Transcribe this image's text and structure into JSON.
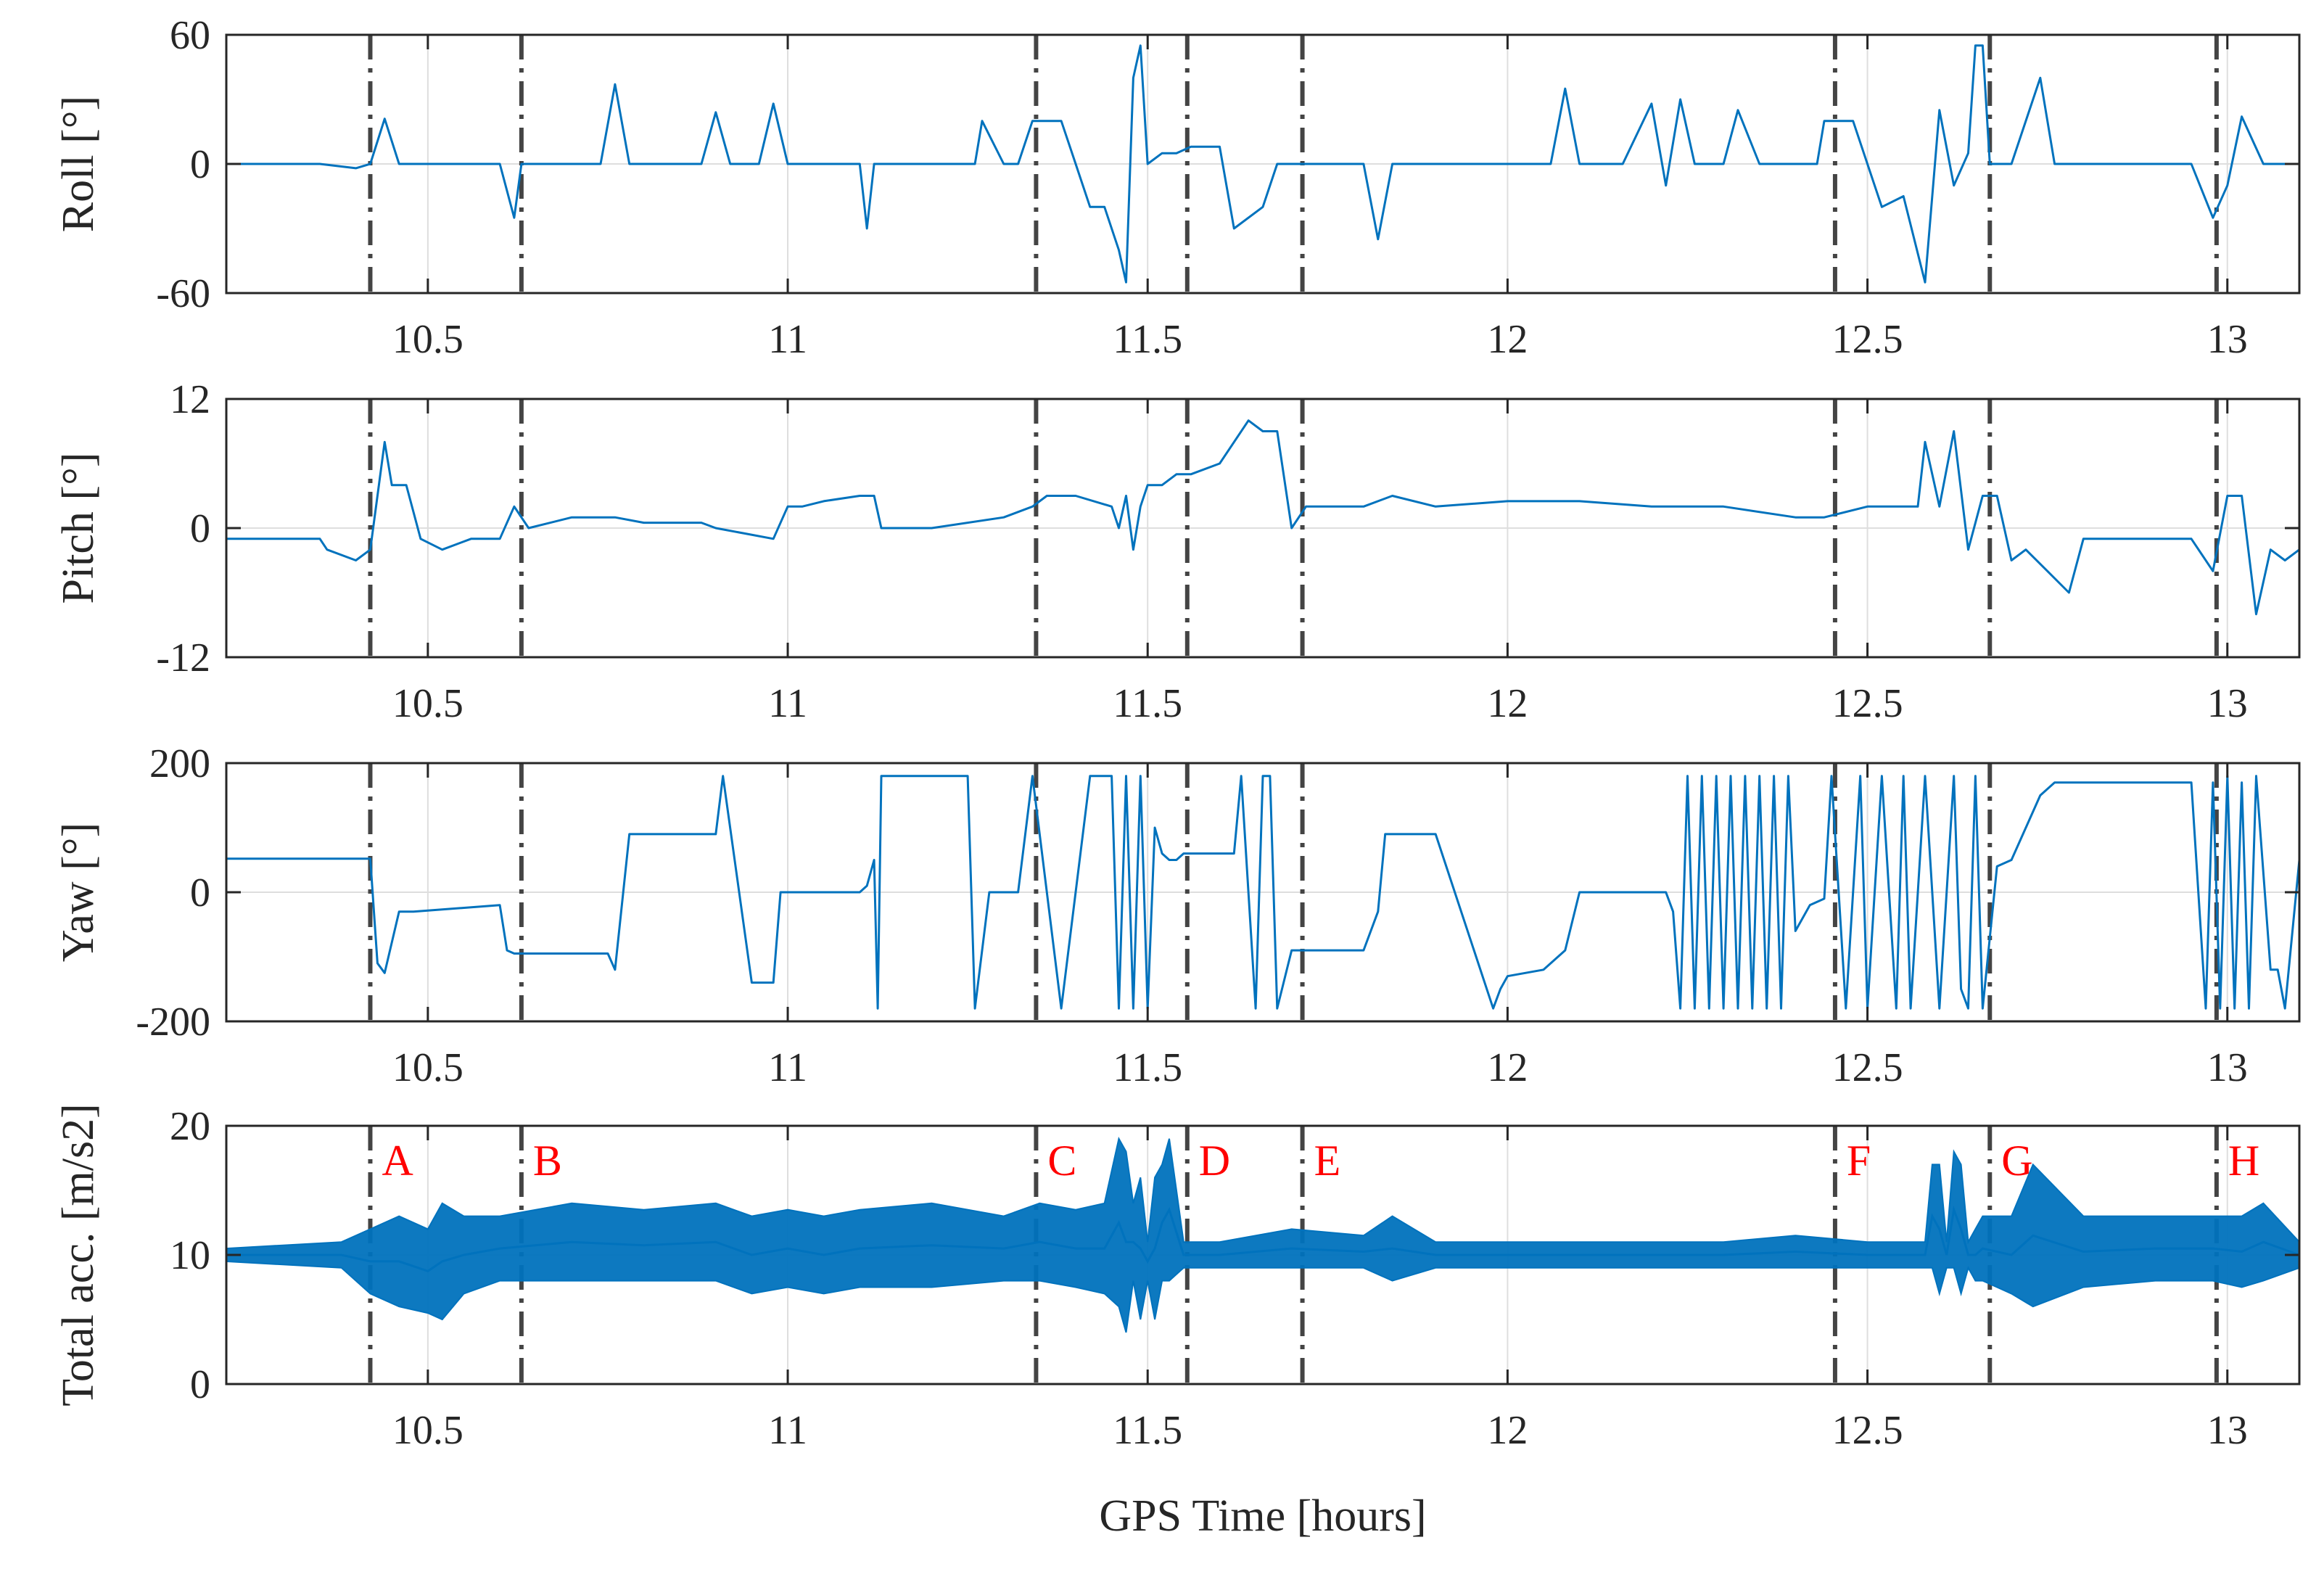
{
  "chart_data": [
    {
      "type": "line",
      "ylabel": "Roll [°]",
      "xlim": [
        10.22,
        13.1
      ],
      "ylim": [
        -60,
        60
      ],
      "yticks": [
        -60,
        0,
        60
      ],
      "ytick_labels": [
        "-60",
        "0",
        "60"
      ],
      "xticks": [
        10.5,
        11,
        11.5,
        12,
        12.5,
        13
      ],
      "xtick_labels": [
        "10.5",
        "11",
        "11.5",
        "12",
        "12.5",
        "13"
      ],
      "grid": true,
      "series": [
        {
          "name": "Roll",
          "color": "#0072bd",
          "x": [
            10.22,
            10.35,
            10.4,
            10.42,
            10.44,
            10.46,
            10.5,
            10.6,
            10.62,
            10.63,
            10.7,
            10.74,
            10.76,
            10.78,
            10.8,
            10.88,
            10.9,
            10.92,
            10.96,
            10.98,
            11.0,
            11.05,
            11.1,
            11.11,
            11.12,
            11.15,
            11.2,
            11.26,
            11.27,
            11.3,
            11.32,
            11.34,
            11.38,
            11.4,
            11.42,
            11.44,
            11.46,
            11.47,
            11.48,
            11.49,
            11.5,
            11.52,
            11.53,
            11.54,
            11.56,
            11.6,
            11.62,
            11.66,
            11.68,
            11.7,
            11.72,
            11.75,
            11.8,
            11.82,
            11.84,
            11.86,
            11.9,
            11.95,
            12.0,
            12.06,
            12.08,
            12.1,
            12.16,
            12.2,
            12.22,
            12.24,
            12.26,
            12.3,
            12.32,
            12.35,
            12.4,
            12.43,
            12.44,
            12.48,
            12.52,
            12.55,
            12.58,
            12.6,
            12.62,
            12.64,
            12.65,
            12.66,
            12.67,
            12.7,
            12.74,
            12.76,
            12.8,
            12.88,
            12.95,
            12.98,
            13.0,
            13.02,
            13.05,
            13.1
          ],
          "values": [
            0,
            0,
            -2,
            0,
            21,
            0,
            0,
            0,
            -25,
            0,
            0,
            0,
            37,
            0,
            0,
            0,
            24,
            0,
            0,
            28,
            0,
            0,
            0,
            -30,
            0,
            0,
            0,
            0,
            20,
            0,
            0,
            20,
            20,
            0,
            -20,
            -20,
            -40,
            -55,
            40,
            55,
            0,
            5,
            5,
            5,
            8,
            8,
            -30,
            -20,
            0,
            0,
            0,
            0,
            0,
            -35,
            0,
            0,
            0,
            0,
            0,
            0,
            35,
            0,
            0,
            28,
            -10,
            30,
            0,
            0,
            25,
            0,
            0,
            0,
            20,
            20,
            -20,
            -15,
            -55,
            25,
            -10,
            5,
            55,
            55,
            0,
            0,
            40,
            0,
            0,
            0,
            0,
            -25,
            -10,
            22,
            0,
            0
          ]
        }
      ]
    },
    {
      "type": "line",
      "ylabel": "Pitch [°]",
      "xlim": [
        10.22,
        13.1
      ],
      "ylim": [
        -12,
        12
      ],
      "yticks": [
        -12,
        0,
        12
      ],
      "ytick_labels": [
        "-12",
        "0",
        "12"
      ],
      "xticks": [
        10.5,
        11,
        11.5,
        12,
        12.5,
        13
      ],
      "xtick_labels": [
        "10.5",
        "11",
        "11.5",
        "12",
        "12.5",
        "13"
      ],
      "grid": true,
      "series": [
        {
          "name": "Pitch",
          "color": "#0072bd",
          "x": [
            10.22,
            10.35,
            10.36,
            10.4,
            10.42,
            10.44,
            10.45,
            10.47,
            10.49,
            10.52,
            10.56,
            10.6,
            10.62,
            10.64,
            10.7,
            10.76,
            10.8,
            10.88,
            10.9,
            10.94,
            10.98,
            11.0,
            11.02,
            11.05,
            11.1,
            11.12,
            11.13,
            11.2,
            11.3,
            11.34,
            11.36,
            11.4,
            11.45,
            11.46,
            11.47,
            11.48,
            11.49,
            11.5,
            11.52,
            11.54,
            11.56,
            11.6,
            11.64,
            11.66,
            11.68,
            11.7,
            11.72,
            11.8,
            11.84,
            11.9,
            12.0,
            12.05,
            12.1,
            12.2,
            12.3,
            12.4,
            12.44,
            12.5,
            12.55,
            12.57,
            12.58,
            12.6,
            12.62,
            12.64,
            12.66,
            12.68,
            12.7,
            12.72,
            12.75,
            12.78,
            12.8,
            12.85,
            12.9,
            12.95,
            12.98,
            13.0,
            13.02,
            13.04,
            13.06,
            13.08,
            13.1
          ],
          "values": [
            -1,
            -1,
            -2,
            -3,
            -2,
            8,
            4,
            4,
            -1,
            -2,
            -1,
            -1,
            2,
            0,
            1,
            1,
            0.5,
            0.5,
            0,
            -0.5,
            -1,
            2,
            2,
            2.5,
            3,
            3,
            0,
            0,
            1,
            2,
            3,
            3,
            2,
            0,
            3,
            -2,
            2,
            4,
            4,
            5,
            5,
            6,
            10,
            9,
            9,
            0,
            2,
            2,
            3,
            2,
            2.5,
            2.5,
            2.5,
            2,
            2,
            1,
            1,
            2,
            2,
            2,
            8,
            2,
            9,
            -2,
            3,
            3,
            -3,
            -2,
            -4,
            -6,
            -1,
            -1,
            -1,
            -1,
            -4,
            3,
            3,
            -8,
            -2,
            -3,
            -2
          ]
        }
      ]
    },
    {
      "type": "line",
      "ylabel": "Yaw [°]",
      "xlim": [
        10.22,
        13.1
      ],
      "ylim": [
        -200,
        200
      ],
      "yticks": [
        -200,
        0,
        200
      ],
      "ytick_labels": [
        "-200",
        "0",
        "200"
      ],
      "xticks": [
        10.5,
        11,
        11.5,
        12,
        12.5,
        13
      ],
      "xtick_labels": [
        "10.5",
        "11",
        "11.5",
        "12",
        "12.5",
        "13"
      ],
      "grid": true,
      "series": [
        {
          "name": "Yaw",
          "color": "#0072bd",
          "x": [
            10.22,
            10.35,
            10.36,
            10.37,
            10.42,
            10.43,
            10.44,
            10.46,
            10.47,
            10.48,
            10.6,
            10.61,
            10.62,
            10.75,
            10.76,
            10.78,
            10.8,
            10.88,
            10.9,
            10.91,
            10.95,
            10.98,
            10.99,
            11.0,
            11.1,
            11.11,
            11.12,
            11.125,
            11.13,
            11.25,
            11.26,
            11.28,
            11.32,
            11.34,
            11.38,
            11.42,
            11.45,
            11.46,
            11.47,
            11.48,
            11.49,
            11.5,
            11.51,
            11.52,
            11.53,
            11.54,
            11.55,
            11.6,
            11.62,
            11.63,
            11.65,
            11.66,
            11.67,
            11.68,
            11.7,
            11.72,
            11.8,
            11.82,
            11.83,
            11.84,
            11.9,
            11.98,
            11.99,
            12.0,
            12.05,
            12.08,
            12.1,
            12.2,
            12.22,
            12.23,
            12.24,
            12.25,
            12.26,
            12.27,
            12.28,
            12.29,
            12.3,
            12.31,
            12.32,
            12.33,
            12.34,
            12.35,
            12.36,
            12.37,
            12.38,
            12.39,
            12.4,
            12.42,
            12.44,
            12.45,
            12.47,
            12.49,
            12.5,
            12.52,
            12.54,
            12.55,
            12.56,
            12.58,
            12.6,
            12.62,
            12.63,
            12.64,
            12.65,
            12.66,
            12.68,
            12.7,
            12.74,
            12.76,
            12.8,
            12.9,
            12.95,
            12.97,
            12.98,
            12.99,
            13.0,
            13.01,
            13.02,
            13.03,
            13.04,
            13.06,
            13.07,
            13.08,
            13.1
          ],
          "values": [
            52,
            52,
            52,
            52,
            52,
            -110,
            -125,
            -30,
            -30,
            -30,
            -20,
            -90,
            -95,
            -95,
            -120,
            90,
            90,
            90,
            90,
            180,
            -140,
            -140,
            0,
            0,
            0,
            10,
            50,
            -180,
            180,
            180,
            -180,
            0,
            0,
            180,
            -180,
            180,
            180,
            -180,
            180,
            -180,
            180,
            -180,
            100,
            60,
            50,
            50,
            60,
            60,
            60,
            180,
            -180,
            180,
            180,
            -180,
            -90,
            -90,
            -90,
            -30,
            90,
            90,
            90,
            -180,
            -150,
            -130,
            -120,
            -90,
            0,
            0,
            0,
            -30,
            -180,
            180,
            -180,
            180,
            -180,
            180,
            -180,
            180,
            -180,
            180,
            -180,
            180,
            -180,
            180,
            -180,
            180,
            -60,
            -20,
            -10,
            180,
            -180,
            180,
            -180,
            180,
            -180,
            180,
            -180,
            180,
            -180,
            180,
            -150,
            -180,
            180,
            -180,
            40,
            50,
            150,
            170,
            170,
            170,
            170,
            -180,
            170,
            -180,
            180,
            -180,
            170,
            -180,
            180,
            -120,
            -120,
            -180,
            50
          ]
        }
      ]
    },
    {
      "type": "line",
      "ylabel": "Total acc. [m/s2]",
      "xlabel": "GPS Time [hours]",
      "xlim": [
        10.22,
        13.1
      ],
      "ylim": [
        0,
        20
      ],
      "yticks": [
        0,
        10,
        20
      ],
      "ytick_labels": [
        "0",
        "10",
        "20"
      ],
      "xticks": [
        10.5,
        11,
        11.5,
        12,
        12.5,
        13
      ],
      "xtick_labels": [
        "10.5",
        "11",
        "11.5",
        "12",
        "12.5",
        "13"
      ],
      "grid": true,
      "series": [
        {
          "name": "Total acc.",
          "color": "#0072bd",
          "x": [
            10.22,
            10.38,
            10.42,
            10.46,
            10.5,
            10.52,
            10.55,
            10.6,
            10.7,
            10.8,
            10.9,
            10.95,
            11.0,
            11.05,
            11.1,
            11.2,
            11.3,
            11.35,
            11.4,
            11.44,
            11.46,
            11.47,
            11.48,
            11.49,
            11.5,
            11.51,
            11.52,
            11.53,
            11.55,
            11.6,
            11.7,
            11.8,
            11.84,
            11.9,
            12.0,
            12.1,
            12.2,
            12.3,
            12.4,
            12.5,
            12.55,
            12.58,
            12.59,
            12.6,
            12.61,
            12.62,
            12.63,
            12.64,
            12.65,
            12.66,
            12.7,
            12.73,
            12.8,
            12.9,
            12.98,
            13.02,
            13.05,
            13.1
          ],
          "max": [
            10.5,
            11,
            12,
            13,
            12,
            14,
            13,
            13,
            14,
            13.5,
            14,
            13,
            13.5,
            13,
            13.5,
            14,
            13,
            14,
            13.5,
            14,
            19,
            18,
            14,
            16,
            11,
            16,
            17,
            19,
            11,
            11,
            12,
            11.5,
            13,
            11,
            11,
            11,
            11,
            11,
            11.5,
            11,
            11,
            11,
            17,
            17,
            11,
            18,
            17,
            11,
            12,
            13,
            13,
            17,
            13,
            13,
            13,
            13,
            14,
            11
          ],
          "min": [
            9.5,
            9,
            7,
            6,
            5.5,
            5,
            7,
            8,
            8,
            8,
            8,
            7,
            7.5,
            7,
            7.5,
            7.5,
            8,
            8,
            7.5,
            7,
            6,
            4,
            8,
            5,
            8,
            5,
            8,
            8,
            9,
            9,
            9,
            9,
            8,
            9,
            9,
            9,
            9,
            9,
            9,
            9,
            9,
            9,
            9,
            7,
            9,
            9,
            7,
            9,
            8,
            8,
            7,
            6,
            7.5,
            8,
            8,
            7.5,
            8,
            9
          ]
        }
      ]
    }
  ],
  "events": {
    "labels": [
      "A",
      "B",
      "C",
      "D",
      "E",
      "F",
      "G",
      "H"
    ],
    "times": [
      10.42,
      10.63,
      11.345,
      11.555,
      11.715,
      12.455,
      12.67,
      12.985
    ]
  },
  "colors": {
    "series": "#0072bd",
    "event_line": "#444444",
    "event_label": "#ff0000",
    "grid": "#dedede",
    "axis": "#262626"
  }
}
